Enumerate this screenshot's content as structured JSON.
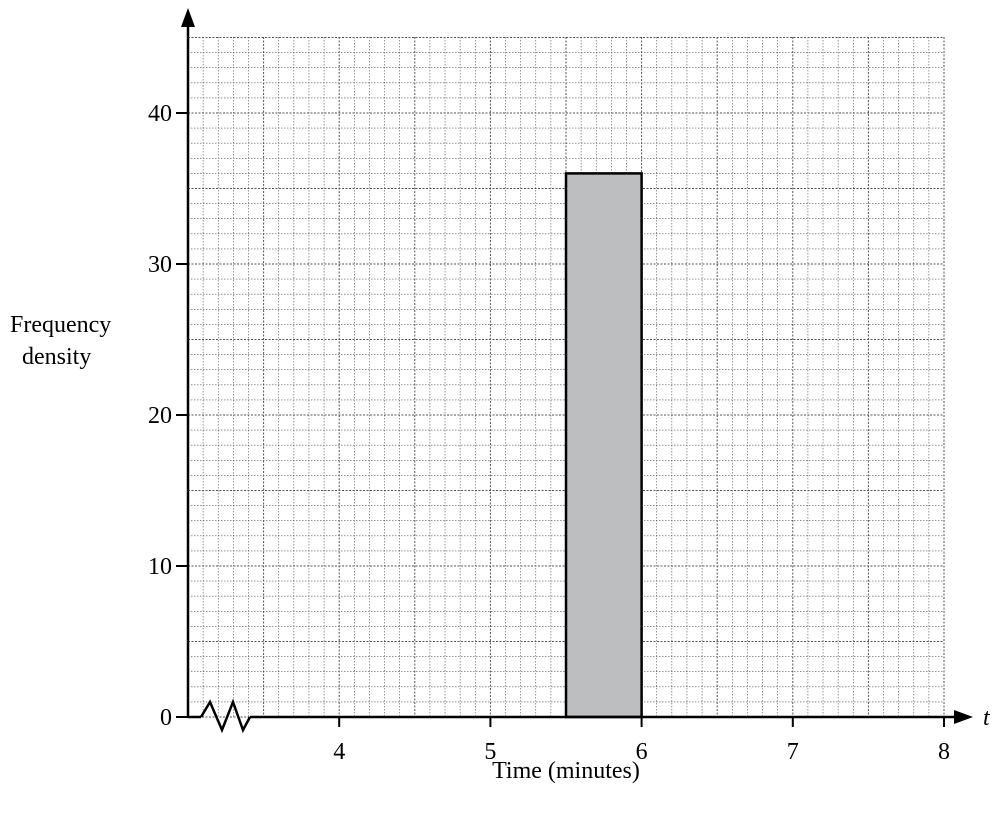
{
  "chart_data": {
    "type": "bar",
    "xlabel": "Time (minutes)",
    "ylabel_lines": [
      "Frequency",
      "density"
    ],
    "x_axis_symbol": "t",
    "xlim": [
      3,
      8
    ],
    "ylim": [
      0,
      45
    ],
    "x_ticks": [
      4,
      5,
      6,
      7,
      8
    ],
    "y_ticks": [
      0,
      10,
      20,
      30,
      40
    ],
    "x_axis_break": true,
    "grid": true,
    "bars": [
      {
        "x_start": 5.5,
        "x_end": 6,
        "value": 36
      }
    ],
    "colors": {
      "bar_fill": "#bcbec0",
      "grid": "#555555",
      "axis": "#000000"
    }
  }
}
